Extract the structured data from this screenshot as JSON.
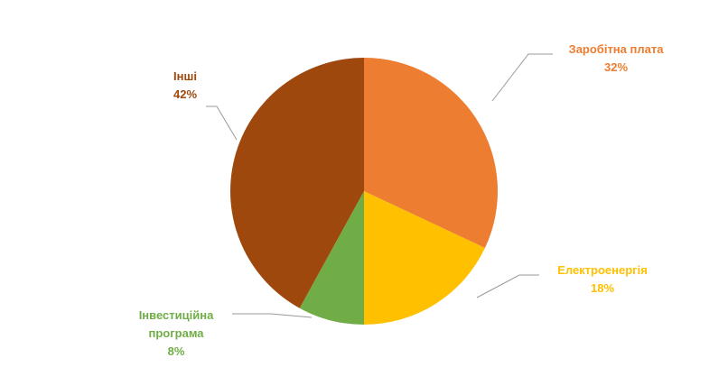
{
  "chart_data": {
    "type": "pie",
    "categories": [
      "Заробітна плата",
      "Електроенергія",
      "Інвестиційна програма",
      "Інші"
    ],
    "values": [
      32,
      18,
      8,
      42
    ],
    "value_labels": [
      "32%",
      "18%",
      "8%",
      "42%"
    ],
    "colors": [
      "#ED7D31",
      "#FFC000",
      "#70AD47",
      "#9E480E"
    ]
  }
}
